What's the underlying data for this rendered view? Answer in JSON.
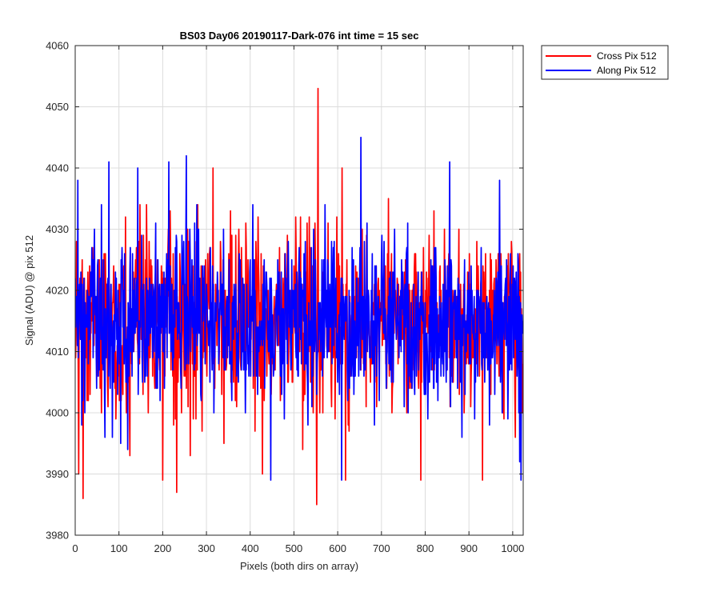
{
  "chart_data": {
    "type": "line",
    "title": "BS03 Day06 20190117-Dark-076 int time = 15 sec",
    "xlabel": "Pixels (both dirs on array)",
    "ylabel": "Signal (ADU) @ pix 512",
    "xlim": [
      0,
      1024
    ],
    "ylim": [
      3980,
      4060
    ],
    "xticks": [
      0,
      100,
      200,
      300,
      400,
      500,
      600,
      700,
      800,
      900,
      1000
    ],
    "yticks": [
      3980,
      3990,
      4000,
      4010,
      4020,
      4030,
      4040,
      4050,
      4060
    ],
    "grid": true,
    "legend_position": "outside-top-right",
    "series": [
      {
        "name": "Cross Pix 512",
        "color": "#ff0000",
        "baseline": 4015,
        "noise_sigma": 6.5,
        "samples": 1024,
        "points": [
          [
            0,
            4011
          ],
          [
            8,
            3990
          ],
          [
            18,
            3986
          ],
          [
            40,
            4027
          ],
          [
            60,
            4000
          ],
          [
            115,
            4032
          ],
          [
            125,
            3993
          ],
          [
            163,
            4034
          ],
          [
            200,
            3989
          ],
          [
            217,
            4033
          ],
          [
            232,
            3987
          ],
          [
            258,
            4001
          ],
          [
            263,
            3993
          ],
          [
            276,
            3999
          ],
          [
            280,
            4034
          ],
          [
            290,
            3997
          ],
          [
            303,
            4026
          ],
          [
            315,
            4040
          ],
          [
            340,
            3995
          ],
          [
            355,
            4033
          ],
          [
            365,
            4017
          ],
          [
            374,
            4030
          ],
          [
            380,
            4027
          ],
          [
            390,
            4031
          ],
          [
            407,
            4004
          ],
          [
            418,
            4032
          ],
          [
            428,
            3990
          ],
          [
            440,
            4011
          ],
          [
            470,
            4010
          ],
          [
            500,
            4024
          ],
          [
            520,
            3994
          ],
          [
            530,
            4031
          ],
          [
            541,
            4022
          ],
          [
            548,
            4031
          ],
          [
            552,
            3985
          ],
          [
            555,
            4053
          ],
          [
            566,
            4000
          ],
          [
            578,
            4031
          ],
          [
            600,
            4010
          ],
          [
            610,
            4040
          ],
          [
            618,
            3989
          ],
          [
            624,
            3998
          ],
          [
            650,
            4015
          ],
          [
            690,
            4008
          ],
          [
            700,
            4015
          ],
          [
            716,
            4035
          ],
          [
            730,
            4020
          ],
          [
            765,
            4020
          ],
          [
            790,
            3989
          ],
          [
            810,
            4016
          ],
          [
            820,
            4033
          ],
          [
            841,
            4009
          ],
          [
            854,
            4026
          ],
          [
            889,
            4000
          ],
          [
            931,
            3989
          ],
          [
            938,
            4026
          ],
          [
            963,
            4014
          ],
          [
            984,
            4012
          ],
          [
            1000,
            4018
          ],
          [
            1006,
            3996
          ],
          [
            1010,
            4007
          ],
          [
            1023,
            4008
          ]
        ]
      },
      {
        "name": "Along Pix 512",
        "color": "#0000ff",
        "baseline": 4015,
        "noise_sigma": 6.5,
        "samples": 1024,
        "points": [
          [
            0,
            4022
          ],
          [
            6,
            4038
          ],
          [
            15,
            3998
          ],
          [
            22,
            4000
          ],
          [
            44,
            4030
          ],
          [
            60,
            4034
          ],
          [
            68,
            3996
          ],
          [
            77,
            4041
          ],
          [
            90,
            4010
          ],
          [
            104,
            3995
          ],
          [
            120,
            3994
          ],
          [
            143,
            4040
          ],
          [
            165,
            4006
          ],
          [
            189,
            4025
          ],
          [
            214,
            4041
          ],
          [
            238,
            4016
          ],
          [
            254,
            4042
          ],
          [
            262,
            4030
          ],
          [
            274,
            4008
          ],
          [
            300,
            4021
          ],
          [
            339,
            4030
          ],
          [
            360,
            4015
          ],
          [
            382,
            4010
          ],
          [
            400,
            4025
          ],
          [
            435,
            4018
          ],
          [
            447,
            3989
          ],
          [
            460,
            4020
          ],
          [
            478,
            3999
          ],
          [
            500,
            4020
          ],
          [
            540,
            4027
          ],
          [
            570,
            4013
          ],
          [
            592,
            4028
          ],
          [
            609,
            3989
          ],
          [
            640,
            4006
          ],
          [
            653,
            4045
          ],
          [
            680,
            4008
          ],
          [
            703,
            4020
          ],
          [
            722,
            4009
          ],
          [
            737,
            4021
          ],
          [
            760,
            4031
          ],
          [
            798,
            4003
          ],
          [
            826,
            4005
          ],
          [
            856,
            4041
          ],
          [
            878,
            4012
          ],
          [
            895,
            4014
          ],
          [
            930,
            4007
          ],
          [
            970,
            4038
          ],
          [
            995,
            4026
          ],
          [
            1012,
            4026
          ],
          [
            1016,
            3992
          ],
          [
            1019,
            3989
          ],
          [
            1023,
            4015
          ]
        ]
      }
    ]
  }
}
